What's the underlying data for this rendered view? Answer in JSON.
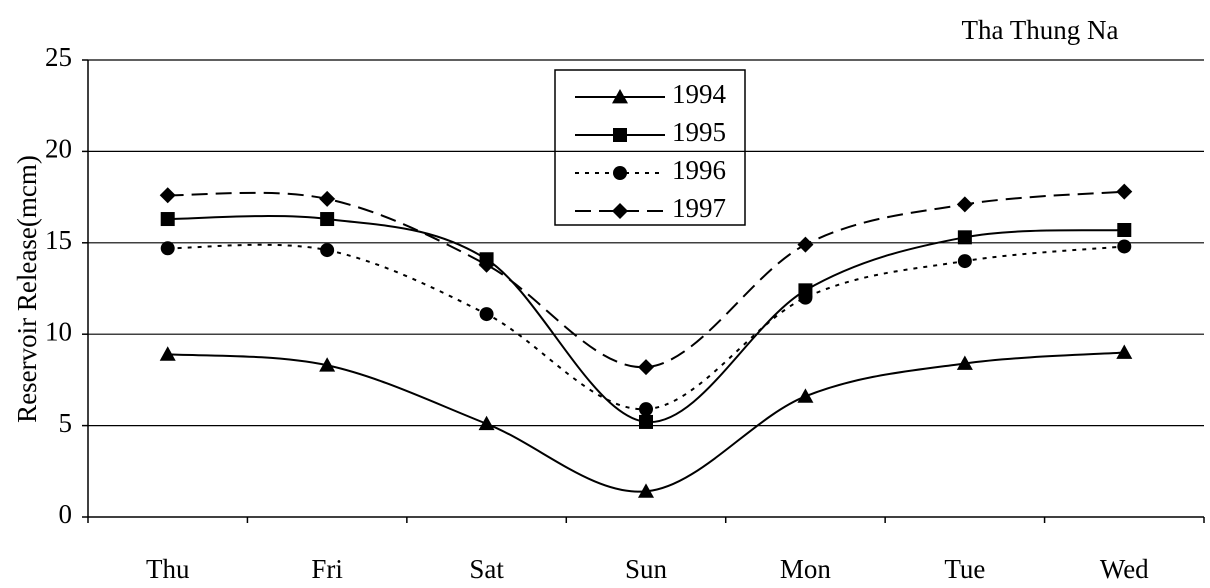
{
  "chart_data": {
    "type": "line",
    "title": "Tha Thung Na",
    "y_label": "Reservoir Release(mcm)",
    "categories": [
      "Thu",
      "Fri",
      "Sat",
      "Sun",
      "Mon",
      "Tue",
      "Wed"
    ],
    "series": [
      {
        "name": "1994",
        "color": "#000000",
        "dash": "solid",
        "marker": "triangle",
        "values": [
          8.9,
          8.3,
          5.1,
          1.4,
          6.6,
          8.4,
          9.0
        ]
      },
      {
        "name": "1995",
        "color": "#000000",
        "dash": "solid",
        "marker": "square",
        "values": [
          16.3,
          16.3,
          14.1,
          5.2,
          12.4,
          15.3,
          15.7
        ]
      },
      {
        "name": "1996",
        "color": "#000000",
        "dash": "dotted",
        "marker": "circle",
        "values": [
          14.7,
          14.6,
          11.1,
          5.9,
          12.0,
          14.0,
          14.8
        ]
      },
      {
        "name": "1997",
        "color": "#000000",
        "dash": "dashed",
        "marker": "diamond",
        "values": [
          17.6,
          17.4,
          13.8,
          8.2,
          14.9,
          17.1,
          17.8
        ]
      }
    ],
    "ylim": [
      0,
      25
    ],
    "yticks": [
      0,
      5,
      10,
      15,
      20,
      25
    ],
    "grid": true,
    "smooth": true
  }
}
